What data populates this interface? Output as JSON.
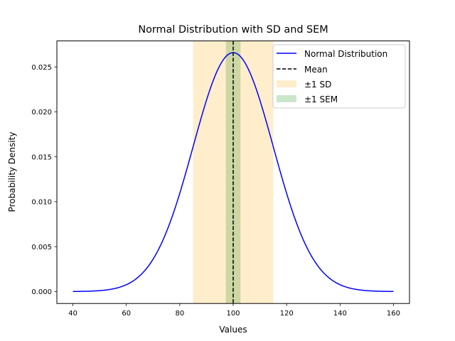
{
  "chart_data": {
    "type": "line",
    "title": "Normal Distribution with SD and SEM",
    "xlabel": "Values",
    "ylabel": "Probability Density",
    "xlim": [
      34,
      166
    ],
    "ylim": [
      -0.00133,
      0.0279
    ],
    "xticks": [
      40,
      60,
      80,
      100,
      120,
      140,
      160
    ],
    "xtick_labels": [
      "40",
      "60",
      "80",
      "100",
      "120",
      "140",
      "160"
    ],
    "yticks": [
      0.0,
      0.005,
      0.01,
      0.015,
      0.02,
      0.025
    ],
    "ytick_labels": [
      "0.000",
      "0.005",
      "0.010",
      "0.015",
      "0.020",
      "0.025"
    ],
    "grid": false,
    "legend_position": "top-right",
    "distribution": {
      "mean": 100,
      "sd": 15,
      "sem": 2.74,
      "x_range": [
        40,
        160
      ]
    },
    "series": [
      {
        "name": "Normal Distribution",
        "kind": "line",
        "color": "#0000ff",
        "style": "solid"
      },
      {
        "name": "Mean",
        "kind": "vline",
        "x": 100,
        "color": "#000000",
        "style": "dashed"
      },
      {
        "name": "±1 SD",
        "kind": "band",
        "x_range": [
          85,
          115
        ],
        "color": "#ffa500",
        "alpha": 0.2
      },
      {
        "name": "±1 SEM",
        "kind": "band",
        "x_range": [
          97.26,
          102.74
        ],
        "color": "#008000",
        "alpha": 0.2
      }
    ]
  }
}
